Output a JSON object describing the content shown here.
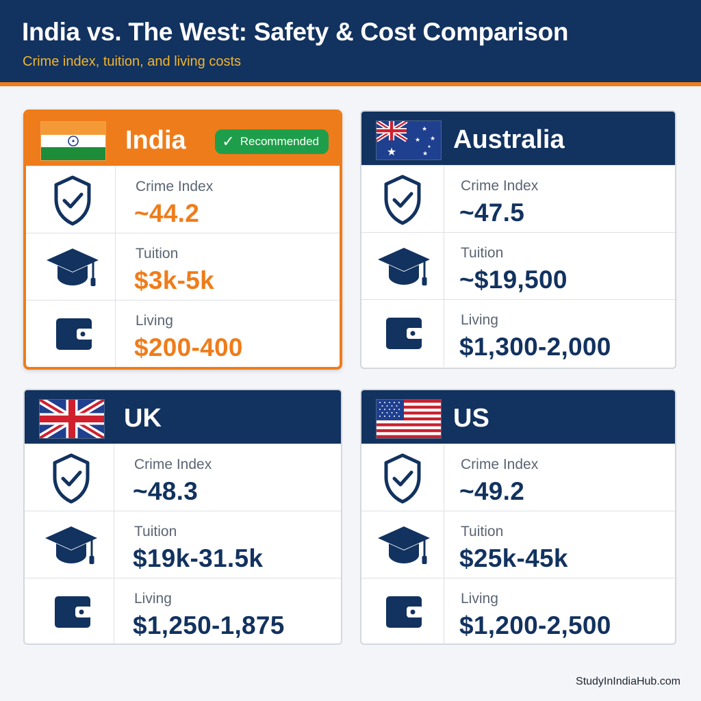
{
  "header": {
    "title": "India vs. The West: Safety & Cost Comparison",
    "subtitle": "Crime index, tuition, and living costs"
  },
  "cards": [
    {
      "country": "India",
      "badge": "Recommended",
      "flag_icon": "india-flag-icon",
      "rows": [
        {
          "label": "Crime Index",
          "value": "~44.2"
        },
        {
          "label": "Tuition",
          "value": "$3k-5k"
        },
        {
          "label": "Living",
          "value": "$200-400"
        }
      ]
    },
    {
      "country": "Australia",
      "flag_icon": "australia-flag-icon",
      "rows": [
        {
          "label": "Crime Index",
          "value": "~47.5"
        },
        {
          "label": "Tuition",
          "value": "~$19,500"
        },
        {
          "label": "Living",
          "value": "$1,300-2,000"
        }
      ]
    },
    {
      "country": "UK",
      "flag_icon": "uk-flag-icon",
      "rows": [
        {
          "label": "Crime Index",
          "value": "~48.3"
        },
        {
          "label": "Tuition",
          "value": "$19k-31.5k"
        },
        {
          "label": "Living",
          "value": "$1,250-1,875"
        }
      ]
    },
    {
      "country": "US",
      "flag_icon": "us-flag-icon",
      "rows": [
        {
          "label": "Crime Index",
          "value": "~49.2"
        },
        {
          "label": "Tuition",
          "value": "$25k-45k"
        },
        {
          "label": "Living",
          "value": "$1,200-2,500"
        }
      ]
    }
  ],
  "row_icons": [
    "shield-check-icon",
    "graduation-cap-icon",
    "wallet-icon"
  ],
  "colors": {
    "navy": "#12325f",
    "orange": "#ef7c1a",
    "gold": "#f3b52c",
    "green": "#1e9e4a"
  },
  "footer": {
    "credit": "StudyInIndiaHub.com"
  }
}
